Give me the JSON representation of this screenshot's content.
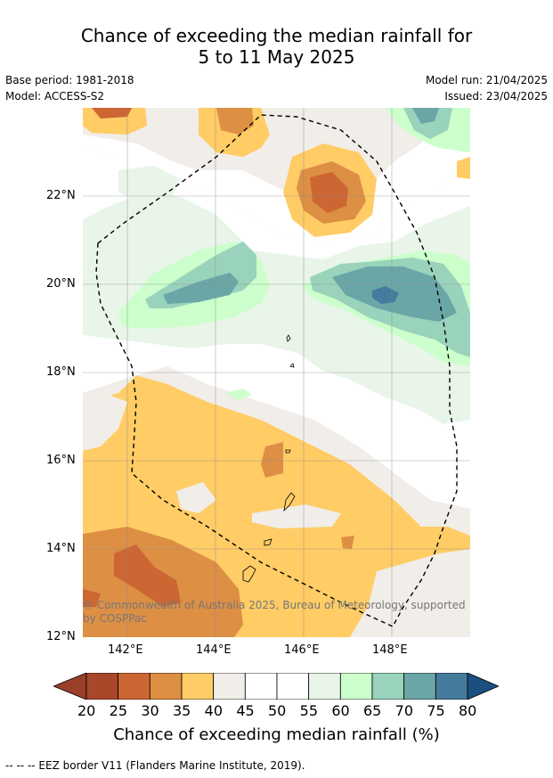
{
  "title": {
    "line1": "Chance of exceeding the median rainfall for",
    "line2": "5 to 11 May 2025"
  },
  "meta": {
    "base_period": "Base period: 1981-2018",
    "model": "Model: ACCESS-S2",
    "model_run": "Model run: 21/04/2025",
    "issued": "Issued: 23/04/2025"
  },
  "axes": {
    "lat_labels": [
      "22°N",
      "20°N",
      "18°N",
      "16°N",
      "14°N",
      "12°N"
    ],
    "lon_labels": [
      "142°E",
      "144°E",
      "146°E",
      "148°E"
    ]
  },
  "copyright": {
    "line1": "© Commonwealth of Australia 2025, Bureau of Meteorology, supported",
    "line2": "by COSPPac"
  },
  "colorbar": {
    "ticks": [
      "20",
      "25",
      "30",
      "35",
      "40",
      "45",
      "50",
      "55",
      "60",
      "65",
      "70",
      "75",
      "80"
    ],
    "colors": [
      "#a9472a",
      "#b04b27",
      "#cc6633",
      "#dd8f44",
      "#ffcc66",
      "#f1ede8",
      "#ffffff",
      "#ffffff",
      "#e8f5e8",
      "#ccffcc",
      "#99d3bb",
      "#6aa6a6",
      "#457b9d",
      "#1c4e80"
    ],
    "low_color": "#993f2a",
    "high_color": "#1c4e80",
    "title": "Chance of exceeding median rainfall (%)"
  },
  "footer": "--  --  -- EEZ border V11 (Flanders Marine Institute, 2019)."
}
